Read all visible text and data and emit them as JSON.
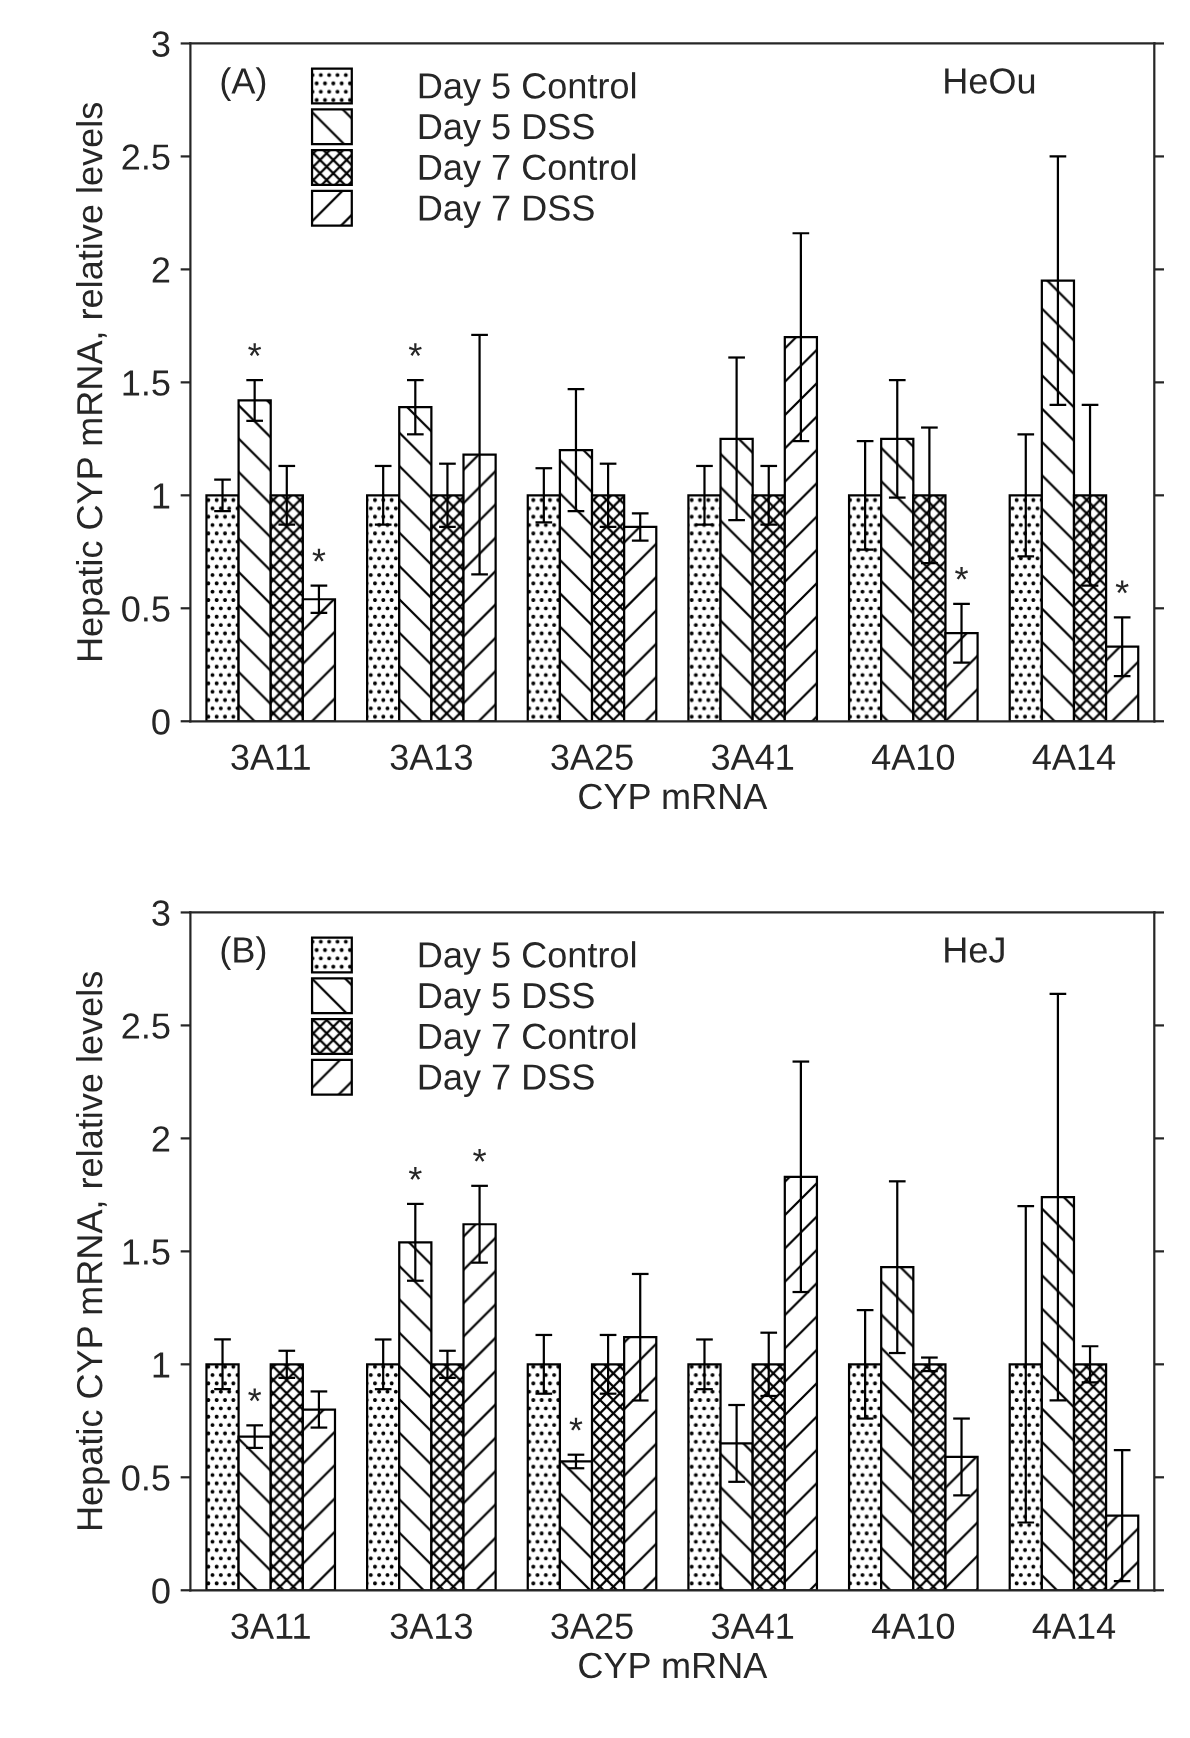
{
  "chart_data": [
    {
      "type": "bar",
      "xlabel": "CYP mRNA",
      "ylabel": "Hepatic CYP mRNA, relative levels",
      "annotations": [
        "(A)",
        "HeOu"
      ],
      "categories": [
        "3A11",
        "3A13",
        "3A25",
        "3A41",
        "4A10",
        "4A14"
      ],
      "series": [
        {
          "name": "Day 5 Control",
          "color": "#000000",
          "values": [
            1,
            1,
            1,
            1,
            1,
            1
          ],
          "errors": [
            0.07,
            0.13,
            0.12,
            0.13,
            0.24,
            0.27
          ]
        },
        {
          "name": "Day 5 DSS",
          "color": "#000000",
          "values": [
            1.42,
            1.39,
            1.2,
            1.25,
            1.25,
            1.95
          ],
          "errors": [
            0.09,
            0.12,
            0.27,
            0.36,
            0.26,
            0.55
          ],
          "value_labels": [
            "*",
            "*",
            null,
            null,
            null,
            null
          ]
        },
        {
          "name": "Day 7 Control",
          "color": "#000000",
          "values": [
            1,
            1,
            1,
            1,
            1,
            1
          ],
          "errors": [
            0.13,
            0.14,
            0.14,
            0.13,
            0.3,
            0.4
          ]
        },
        {
          "name": "Day 7 DSS",
          "color": "#000000",
          "values": [
            0.54,
            1.18,
            0.86,
            1.7,
            0.39,
            0.33
          ],
          "errors": [
            0.06,
            0.53,
            0.06,
            0.46,
            0.13,
            0.13
          ],
          "value_labels": [
            "*",
            null,
            null,
            null,
            "*",
            "*"
          ]
        }
      ],
      "ylim": [
        0,
        3
      ],
      "yticks": [
        0,
        0.5,
        1,
        1.5,
        2,
        2.5,
        3
      ],
      "legend": "top left",
      "grid": false
    },
    {
      "type": "bar",
      "xlabel": "CYP mRNA",
      "ylabel": "Hepatic CYP mRNA, relative levels",
      "annotations": [
        "(B)",
        "HeJ"
      ],
      "categories": [
        "3A11",
        "3A13",
        "3A25",
        "3A41",
        "4A10",
        "4A14"
      ],
      "series": [
        {
          "name": "Day 5 Control",
          "color": "#000000",
          "values": [
            1,
            1,
            1,
            1,
            1,
            1
          ],
          "errors": [
            0.11,
            0.11,
            0.13,
            0.11,
            0.24,
            0.7
          ]
        },
        {
          "name": "Day 5 DSS",
          "color": "#000000",
          "values": [
            0.68,
            1.54,
            0.57,
            0.65,
            1.43,
            1.74
          ],
          "errors": [
            0.05,
            0.17,
            0.03,
            0.17,
            0.38,
            0.9
          ],
          "value_labels": [
            "*",
            "*",
            "*",
            null,
            null,
            null
          ]
        },
        {
          "name": "Day 7 Control",
          "color": "#000000",
          "values": [
            1,
            1,
            1,
            1,
            1,
            1
          ],
          "errors": [
            0.06,
            0.06,
            0.13,
            0.14,
            0.03,
            0.08
          ]
        },
        {
          "name": "Day 7 DSS",
          "color": "#000000",
          "values": [
            0.8,
            1.62,
            1.12,
            1.83,
            0.59,
            0.33
          ],
          "errors": [
            0.08,
            0.17,
            0.28,
            0.51,
            0.17,
            0.29
          ],
          "value_labels": [
            null,
            "*",
            null,
            null,
            null,
            null
          ]
        }
      ],
      "ylim": [
        0,
        3
      ],
      "yticks": [
        0,
        0.5,
        1,
        1.5,
        2,
        2.5,
        3
      ],
      "legend": "top left",
      "grid": false
    }
  ]
}
